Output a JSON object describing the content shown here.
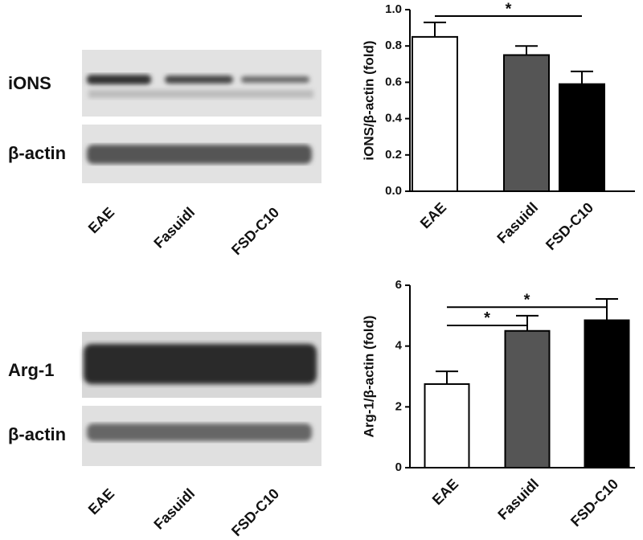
{
  "blots": [
    {
      "rows": [
        "iONS",
        "β-actin"
      ],
      "lanes": [
        "EAE",
        "Fasuidl",
        "FSD-C10"
      ]
    },
    {
      "rows": [
        "Arg-1",
        "β-actin"
      ],
      "lanes": [
        "EAE",
        "Fasuidl",
        "FSD-C10"
      ]
    }
  ],
  "chart_data": [
    {
      "type": "bar",
      "y_label": "iONS/β-actin (fold)",
      "categories": [
        "EAE",
        "Fasuidl",
        "FSD-C10"
      ],
      "values": [
        0.85,
        0.75,
        0.59
      ],
      "errors": [
        0.08,
        0.05,
        0.07
      ],
      "colors": [
        "#ffffff",
        "#555555",
        "#000000"
      ],
      "ylim": [
        0,
        1.0
      ],
      "yticks": [
        {
          "value": 0,
          "label": "0.0"
        },
        0.2,
        0.4,
        0.6,
        0.8,
        {
          "value": 1.0,
          "label": "1.0"
        }
      ],
      "annotations": [
        {
          "text": "*",
          "categories": [
            0,
            2
          ]
        }
      ]
    },
    {
      "type": "bar",
      "y_label": "Arg-1/β-actin (fold)",
      "categories": [
        "EAE",
        "Fasuidl",
        "FSD-C10"
      ],
      "values": [
        2.75,
        4.5,
        4.85
      ],
      "errors": [
        0.42,
        0.5,
        0.7
      ],
      "colors": [
        "#ffffff",
        "#555555",
        "#000000"
      ],
      "ylim": [
        0,
        6
      ],
      "yticks": [
        0,
        2,
        4,
        6
      ],
      "annotations": [
        {
          "text": "*",
          "categories": [
            0,
            1
          ]
        },
        {
          "text": "*",
          "categories": [
            0,
            2
          ]
        }
      ]
    }
  ]
}
